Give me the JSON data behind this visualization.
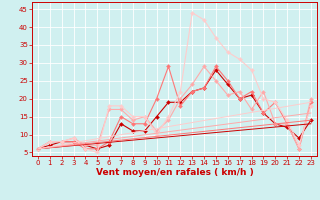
{
  "xlabel": "Vent moyen/en rafales ( km/h )",
  "background_color": "#d0f0f0",
  "grid_color": "#ffffff",
  "xlim": [
    -0.5,
    23.5
  ],
  "ylim": [
    4,
    47
  ],
  "yticks": [
    5,
    10,
    15,
    20,
    25,
    30,
    35,
    40,
    45
  ],
  "xticks": [
    0,
    1,
    2,
    3,
    4,
    5,
    6,
    7,
    8,
    9,
    10,
    11,
    12,
    13,
    14,
    15,
    16,
    17,
    18,
    19,
    20,
    21,
    22,
    23
  ],
  "series": [
    {
      "x": [
        0,
        1,
        2,
        3,
        4,
        5,
        6,
        7,
        8,
        9,
        10,
        11,
        12,
        13,
        14,
        15,
        16,
        17,
        18,
        19,
        20,
        21,
        22,
        23
      ],
      "y": [
        6,
        7,
        8,
        8,
        7,
        6,
        7,
        13,
        11,
        11,
        15,
        19,
        19,
        22,
        23,
        28,
        24,
        20,
        21,
        16,
        13,
        12,
        9,
        14
      ],
      "color": "#cc0000",
      "marker": "D",
      "ms": 2.0,
      "lw": 0.8
    },
    {
      "x": [
        0,
        1,
        2,
        3,
        4,
        5,
        6,
        7,
        8,
        9,
        10,
        11,
        12,
        13,
        14,
        15,
        16,
        17,
        18,
        19,
        20,
        21,
        22,
        23
      ],
      "y": [
        6,
        8,
        8,
        8,
        6,
        6,
        8,
        15,
        13,
        13,
        20,
        29,
        18,
        22,
        23,
        29,
        25,
        20,
        22,
        16,
        19,
        13,
        6,
        19
      ],
      "color": "#ff7777",
      "marker": "D",
      "ms": 2.0,
      "lw": 0.8
    },
    {
      "x": [
        0,
        1,
        2,
        3,
        4,
        5,
        6,
        7,
        8,
        9,
        10,
        11,
        12,
        13,
        14,
        15,
        16,
        17,
        18,
        19,
        20,
        21,
        22,
        23
      ],
      "y": [
        6,
        8,
        8,
        9,
        7,
        7,
        17,
        17,
        14,
        15,
        11,
        14,
        20,
        24,
        29,
        25,
        21,
        22,
        17,
        22,
        13,
        13,
        6,
        20
      ],
      "color": "#ffaaaa",
      "marker": "D",
      "ms": 2.0,
      "lw": 0.8
    },
    {
      "x": [
        0,
        1,
        2,
        3,
        4,
        5,
        6,
        7,
        8,
        9,
        10,
        11,
        12,
        13,
        14,
        15,
        16,
        17,
        18,
        19,
        20,
        21,
        22,
        23
      ],
      "y": [
        6,
        8,
        8,
        9,
        6,
        5,
        18,
        18,
        15,
        15,
        10,
        15,
        22,
        44,
        42,
        37,
        33,
        31,
        28,
        20,
        19,
        14,
        7,
        18
      ],
      "color": "#ffcccc",
      "marker": "D",
      "ms": 2.0,
      "lw": 0.8
    },
    {
      "x": [
        0,
        23
      ],
      "y": [
        6,
        13
      ],
      "color": "#cc0000",
      "marker": null,
      "ms": 0,
      "lw": 0.7
    },
    {
      "x": [
        0,
        23
      ],
      "y": [
        6,
        14
      ],
      "color": "#ff7777",
      "marker": null,
      "ms": 0,
      "lw": 0.7
    },
    {
      "x": [
        0,
        23
      ],
      "y": [
        6,
        16
      ],
      "color": "#ffaaaa",
      "marker": null,
      "ms": 0,
      "lw": 0.7
    },
    {
      "x": [
        0,
        23
      ],
      "y": [
        6,
        19
      ],
      "color": "#ffcccc",
      "marker": null,
      "ms": 0,
      "lw": 0.7
    }
  ],
  "xlabel_color": "#cc0000",
  "xlabel_fontsize": 6.5,
  "tick_fontsize": 5.0,
  "tick_color": "#cc0000"
}
